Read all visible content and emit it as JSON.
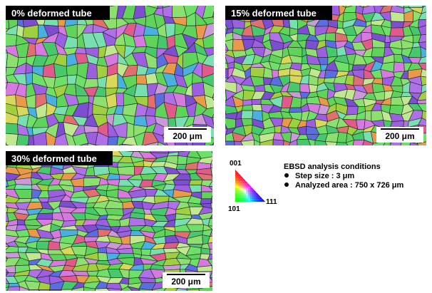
{
  "panels": [
    {
      "label": "0% deformed tube",
      "scale_bar": "200 μm"
    },
    {
      "label": "15% deformed tube",
      "scale_bar": "200 μm"
    },
    {
      "label": "30% deformed tube",
      "scale_bar": "200 μm"
    }
  ],
  "legend": {
    "poles": [
      "001",
      "101",
      "111"
    ],
    "title": "EBSD analysis conditions",
    "items": [
      "Step size : 3 μm",
      "Analyzed area : 750 x 726 μm"
    ]
  }
}
